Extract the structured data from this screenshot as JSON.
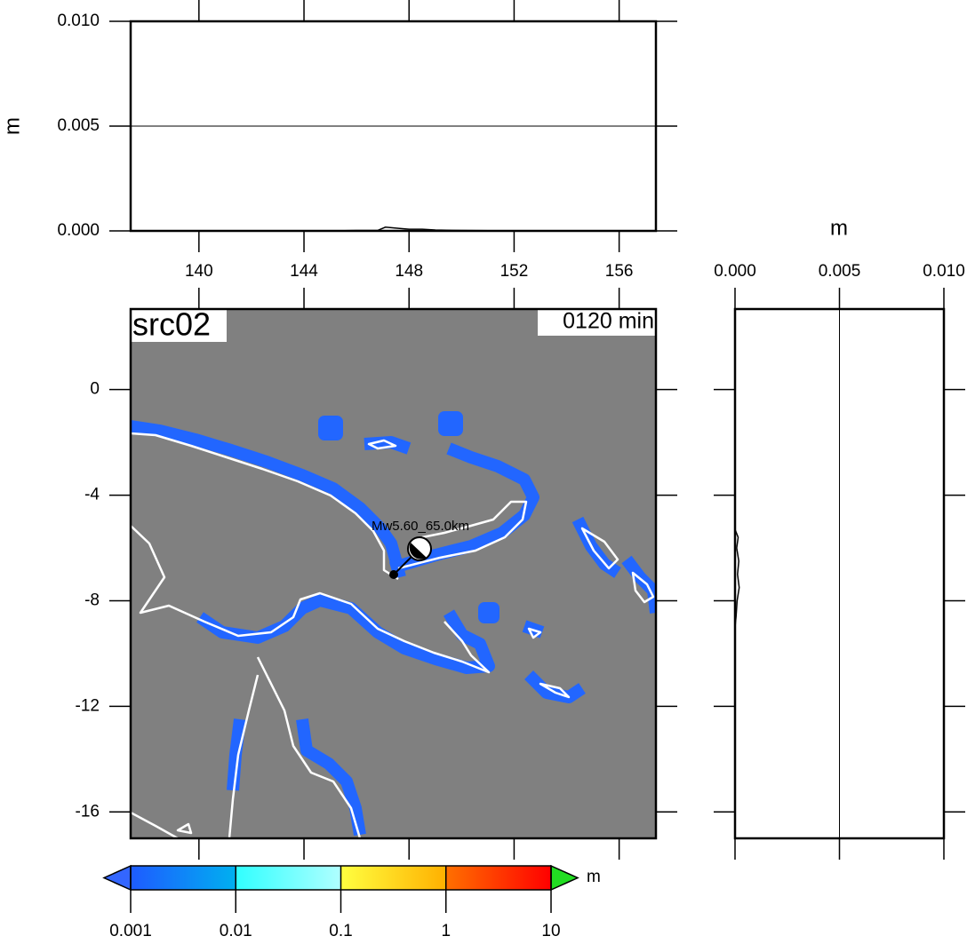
{
  "chart_data": [
    {
      "type": "line",
      "ylabel": "m",
      "xlim": [
        137.4,
        157.4
      ],
      "xticks": [
        140,
        144,
        148,
        152,
        156
      ],
      "ylim": [
        0,
        0.01
      ],
      "yticks": [
        {
          "value": 0,
          "label": "0.000"
        },
        {
          "value": 0.005,
          "label": "0.005"
        },
        {
          "value": 0.01,
          "label": "0.010"
        }
      ],
      "grid": true,
      "x": [
        137.4,
        145,
        146,
        146.8,
        147.1,
        147.6,
        148,
        148.5,
        149,
        150,
        151,
        153,
        155,
        157.4
      ],
      "series": [
        {
          "color": "#000000",
          "values": [
            0,
            0,
            2e-05,
            2e-05,
            0.00018,
            0.00012,
            8e-05,
            8e-05,
            4e-05,
            2e-05,
            1e-05,
            1e-05,
            0,
            0
          ]
        }
      ]
    },
    {
      "type": "map",
      "title": "src02",
      "time_label": "0120 min",
      "event_label": "Mw5.60_65.0km",
      "xlim": [
        137.4,
        157.4
      ],
      "xticks": [
        140,
        144,
        148,
        152,
        156
      ],
      "ylim": [
        -17,
        3.05
      ],
      "yticks": [
        0,
        -4,
        -8,
        -12,
        -16
      ],
      "colorbar": {
        "log": true,
        "ticks": [
          0.001,
          0.01,
          0.1,
          1,
          10
        ],
        "label": "m",
        "colors": [
          [
            "#1e5bff",
            "#00b0f0"
          ],
          [
            "#30ffff",
            "#b0ffff"
          ],
          [
            "#ffff40",
            "#ffb000"
          ],
          [
            "#ff7000",
            "#ff0000"
          ]
        ],
        "under_color": "#3366ff",
        "over_color": "#22dd22"
      }
    },
    {
      "type": "profile",
      "xlabel": "m",
      "xlim": [
        0,
        0.01
      ],
      "xticks": [
        {
          "value": 0,
          "label": "0.000"
        },
        {
          "value": 0.005,
          "label": "0.005"
        },
        {
          "value": 0.01,
          "label": "0.010"
        }
      ],
      "ylim": [
        -17,
        3.05
      ],
      "yticks": [
        0,
        -4,
        -8,
        -12,
        -16
      ],
      "grid": true,
      "series": [
        {
          "color": "#000000",
          "y": [
            3.05,
            -5.3,
            -5.6,
            -6,
            -6.5,
            -7,
            -7.5,
            -8,
            -8.6,
            -9,
            -17
          ],
          "values": [
            0,
            0,
            0.00015,
            8e-05,
            0.00018,
            0.00012,
            0.0002,
            0.0001,
            5e-05,
            0,
            0
          ]
        }
      ]
    }
  ]
}
